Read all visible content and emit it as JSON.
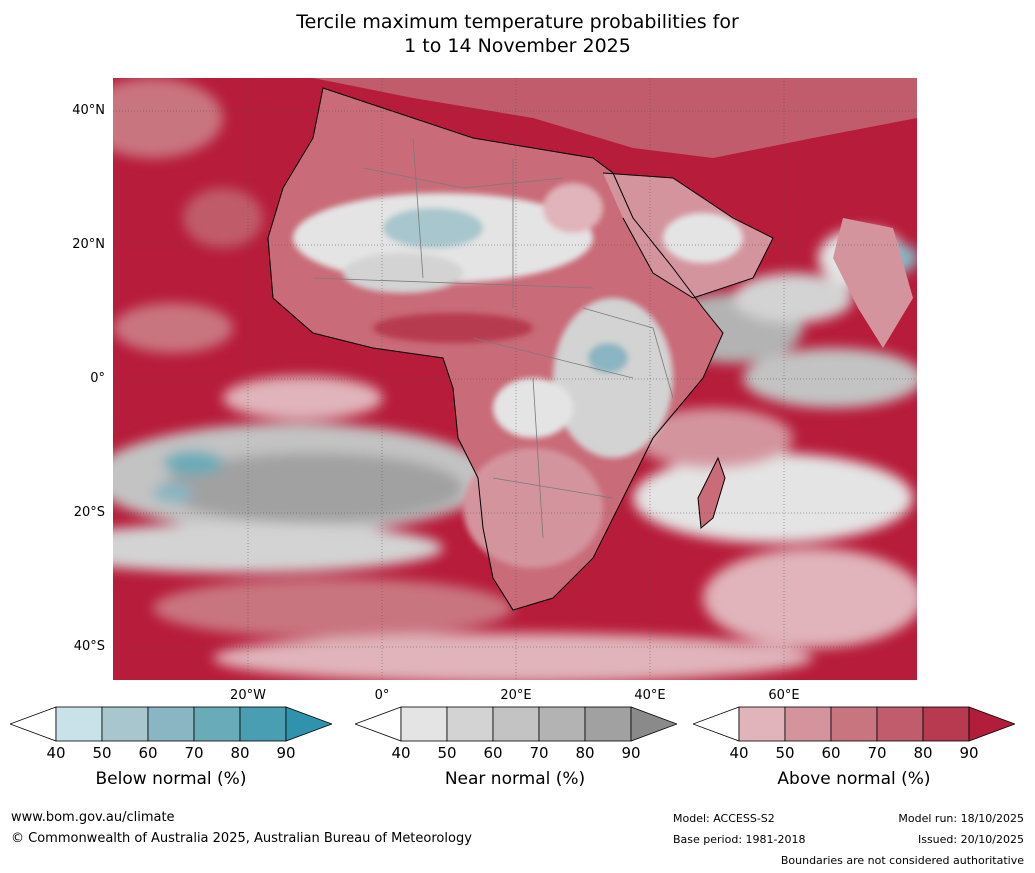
{
  "title": {
    "line1": "Tercile maximum temperature probabilities for",
    "line2": "1 to 14 November 2025"
  },
  "map": {
    "lat_labels": [
      "40°N",
      "20°N",
      "0°",
      "20°S",
      "40°S"
    ],
    "lon_labels": [
      "20°W",
      "0°",
      "20°E",
      "40°E",
      "60°E"
    ],
    "region": "Africa",
    "colors": {
      "ocean_above": "#b71c3a",
      "land_above": "#c96b78",
      "near": "#cfcfcf",
      "below": "#8fb9c6"
    }
  },
  "legend": {
    "ticks": [
      "40",
      "50",
      "60",
      "70",
      "80",
      "90"
    ],
    "below": {
      "title": "Below normal (%)",
      "colors": [
        "#ffffff",
        "#c9e1e8",
        "#a7c6cd",
        "#8ab5c2",
        "#6aabb8",
        "#4a9eb1",
        "#2f93ad"
      ]
    },
    "near": {
      "title": "Near normal (%)",
      "colors": [
        "#ffffff",
        "#e4e4e4",
        "#d3d3d3",
        "#c3c3c3",
        "#b3b3b3",
        "#a1a1a1",
        "#8a8a8a"
      ]
    },
    "above": {
      "title": "Above normal (%)",
      "colors": [
        "#ffffff",
        "#e0b4ba",
        "#d4949e",
        "#c97580",
        "#c05c6b",
        "#b73a50",
        "#b31d3c"
      ]
    }
  },
  "footer": {
    "website": "www.bom.gov.au/climate",
    "copyright": "© Commonwealth of Australia 2025, Australian Bureau of Meteorology",
    "model": "Model: ACCESS-S2",
    "base_period": "Base period: 1981-2018",
    "model_run": "Model run: 18/10/2025",
    "issued": "Issued: 20/10/2025",
    "disclaimer": "Boundaries are not considered authoritative"
  }
}
